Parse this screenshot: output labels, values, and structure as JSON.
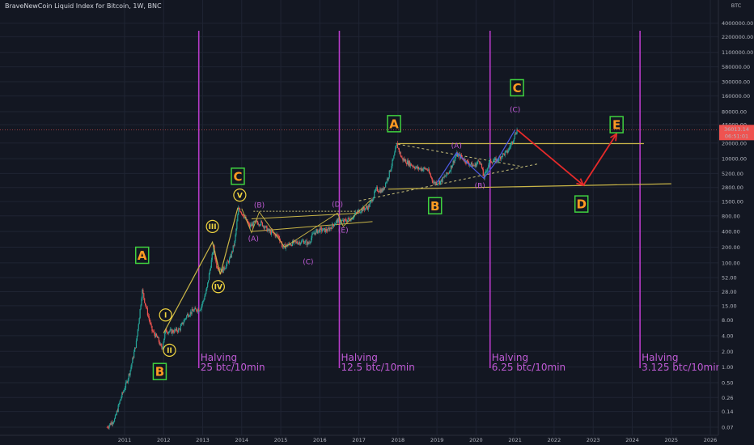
{
  "header": {
    "title": "BraveNewCoin Liquid Index for Bitcoin, 1W, BNC"
  },
  "colors": {
    "background": "#131722",
    "grid": "#1f2433",
    "up": "#26a69a",
    "down": "#ef5350",
    "halving": "#b73bc9",
    "halving_text": "#c05bd6",
    "wave_line": "#c9b547",
    "dash_line": "#c9c17a",
    "projection": "#e52a2a",
    "label_green": "#3fd13f",
    "label_orange": "#ff9a22",
    "last_price_bg": "#ef5350"
  },
  "chart_data": {
    "type": "candlestick",
    "title": "BraveNewCoin Liquid Index for Bitcoin, 1W, BNC",
    "y_scale": "log",
    "ylim": [
      0.07,
      10000000
    ],
    "xlim": [
      2010.5,
      2026.2
    ],
    "x_ticks": [
      "2011",
      "2012",
      "2013",
      "2014",
      "2015",
      "2016",
      "2017",
      "2018",
      "2019",
      "2020",
      "2021",
      "2022",
      "2023",
      "2024",
      "2025",
      "2026"
    ],
    "y_ticks": [
      "4000000.00",
      "2200000.00",
      "1100000.00",
      "580000.00",
      "300000.00",
      "160000.00",
      "80000.00",
      "45000.00",
      "20000.00",
      "10000.00",
      "5200.00",
      "2800.00",
      "1500.00",
      "800.00",
      "400.00",
      "200.00",
      "100.00",
      "52.00",
      "28.00",
      "15.00",
      "8.00",
      "4.00",
      "2.00",
      "1.00",
      "0.50",
      "0.26",
      "0.14",
      "0.07"
    ],
    "axis_unit": "BTC",
    "last_price": "36013.14",
    "countdown": "06:51:01",
    "price_path": [
      [
        2010.55,
        0.07
      ],
      [
        2010.75,
        0.1
      ],
      [
        2010.9,
        0.25
      ],
      [
        2011.05,
        0.5
      ],
      [
        2011.15,
        0.9
      ],
      [
        2011.3,
        3.0
      ],
      [
        2011.42,
        18
      ],
      [
        2011.45,
        30
      ],
      [
        2011.55,
        14
      ],
      [
        2011.7,
        5
      ],
      [
        2011.85,
        3.5
      ],
      [
        2011.95,
        2.2
      ],
      [
        2012.05,
        5
      ],
      [
        2012.2,
        4.8
      ],
      [
        2012.4,
        5.2
      ],
      [
        2012.6,
        10
      ],
      [
        2012.75,
        12
      ],
      [
        2012.95,
        13.5
      ],
      [
        2013.1,
        30
      ],
      [
        2013.28,
        200
      ],
      [
        2013.35,
        90
      ],
      [
        2013.5,
        70
      ],
      [
        2013.7,
        120
      ],
      [
        2013.82,
        250
      ],
      [
        2013.92,
        1150
      ],
      [
        2014.05,
        800
      ],
      [
        2014.2,
        500
      ],
      [
        2014.35,
        600
      ],
      [
        2014.5,
        580
      ],
      [
        2014.7,
        400
      ],
      [
        2014.95,
        320
      ],
      [
        2015.05,
        200
      ],
      [
        2015.3,
        240
      ],
      [
        2015.6,
        260
      ],
      [
        2015.7,
        230
      ],
      [
        2015.85,
        380
      ],
      [
        2016.0,
        430
      ],
      [
        2016.2,
        420
      ],
      [
        2016.45,
        650
      ],
      [
        2016.6,
        620
      ],
      [
        2016.8,
        720
      ],
      [
        2017.0,
        1000
      ],
      [
        2017.25,
        1200
      ],
      [
        2017.45,
        2600
      ],
      [
        2017.6,
        2400
      ],
      [
        2017.75,
        4500
      ],
      [
        2017.9,
        11000
      ],
      [
        2017.97,
        19000
      ],
      [
        2018.1,
        10000
      ],
      [
        2018.3,
        8000
      ],
      [
        2018.5,
        6500
      ],
      [
        2018.75,
        6300
      ],
      [
        2018.92,
        3400
      ],
      [
        2019.1,
        3700
      ],
      [
        2019.3,
        5500
      ],
      [
        2019.5,
        12000
      ],
      [
        2019.6,
        11000
      ],
      [
        2019.8,
        8300
      ],
      [
        2019.95,
        7200
      ],
      [
        2020.1,
        9500
      ],
      [
        2020.2,
        4300
      ],
      [
        2020.35,
        9000
      ],
      [
        2020.55,
        9300
      ],
      [
        2020.65,
        11500
      ],
      [
        2020.8,
        13500
      ],
      [
        2020.9,
        19000
      ],
      [
        2021.0,
        30000
      ],
      [
        2021.05,
        36013
      ]
    ],
    "halvings": [
      {
        "x": 2012.9,
        "label_1": "Halving",
        "label_2": "25 btc/10min"
      },
      {
        "x": 2016.5,
        "label_1": "Halving",
        "label_2": "12.5 btc/10min"
      },
      {
        "x": 2020.36,
        "label_1": "Halving",
        "label_2": "6.25 btc/10min"
      },
      {
        "x": 2024.2,
        "label_1": "Halving",
        "label_2": "3.125 btc/10min"
      }
    ],
    "wave_labels_boxed": [
      {
        "text": "A",
        "x": 2011.45,
        "y": 140,
        "color": "green"
      },
      {
        "text": "B",
        "x": 2011.9,
        "y": 0.82,
        "color": "green"
      },
      {
        "text": "C",
        "x": 2013.9,
        "y": 4600,
        "color": "green"
      },
      {
        "text": "A",
        "x": 2017.9,
        "y": 47000,
        "color": "green"
      },
      {
        "text": "B",
        "x": 2018.95,
        "y": 1250,
        "color": "green"
      },
      {
        "text": "C",
        "x": 2021.05,
        "y": 230000,
        "color": "green"
      },
      {
        "text": "D",
        "x": 2022.7,
        "y": 1350,
        "color": "green"
      },
      {
        "text": "E",
        "x": 2023.6,
        "y": 45000,
        "color": "green"
      }
    ],
    "wave_labels_roman": [
      {
        "text": "I",
        "x": 2012.05,
        "y": 10
      },
      {
        "text": "II",
        "x": 2012.15,
        "y": 2.1
      },
      {
        "text": "III",
        "x": 2013.25,
        "y": 500
      },
      {
        "text": "IV",
        "x": 2013.4,
        "y": 35
      },
      {
        "text": "V",
        "x": 2013.95,
        "y": 2000
      }
    ],
    "wave_labels_sub": [
      {
        "text": "(A)",
        "x": 2014.3,
        "y": 260,
        "color": "#c05bd6"
      },
      {
        "text": "(B)",
        "x": 2014.45,
        "y": 1150,
        "color": "#c05bd6"
      },
      {
        "text": "(C)",
        "x": 2015.7,
        "y": 95,
        "color": "#c05bd6"
      },
      {
        "text": "(D)",
        "x": 2016.45,
        "y": 1200,
        "color": "#c05bd6"
      },
      {
        "text": "(E)",
        "x": 2016.6,
        "y": 380,
        "color": "#c05bd6"
      },
      {
        "text": "(A)",
        "x": 2019.5,
        "y": 16000,
        "color": "#4e5be8"
      },
      {
        "text": "(B)",
        "x": 2020.1,
        "y": 2700,
        "color": "#4e5be8"
      },
      {
        "text": "(C)",
        "x": 2021.0,
        "y": 78000,
        "color": "#4e5be8"
      }
    ]
  }
}
